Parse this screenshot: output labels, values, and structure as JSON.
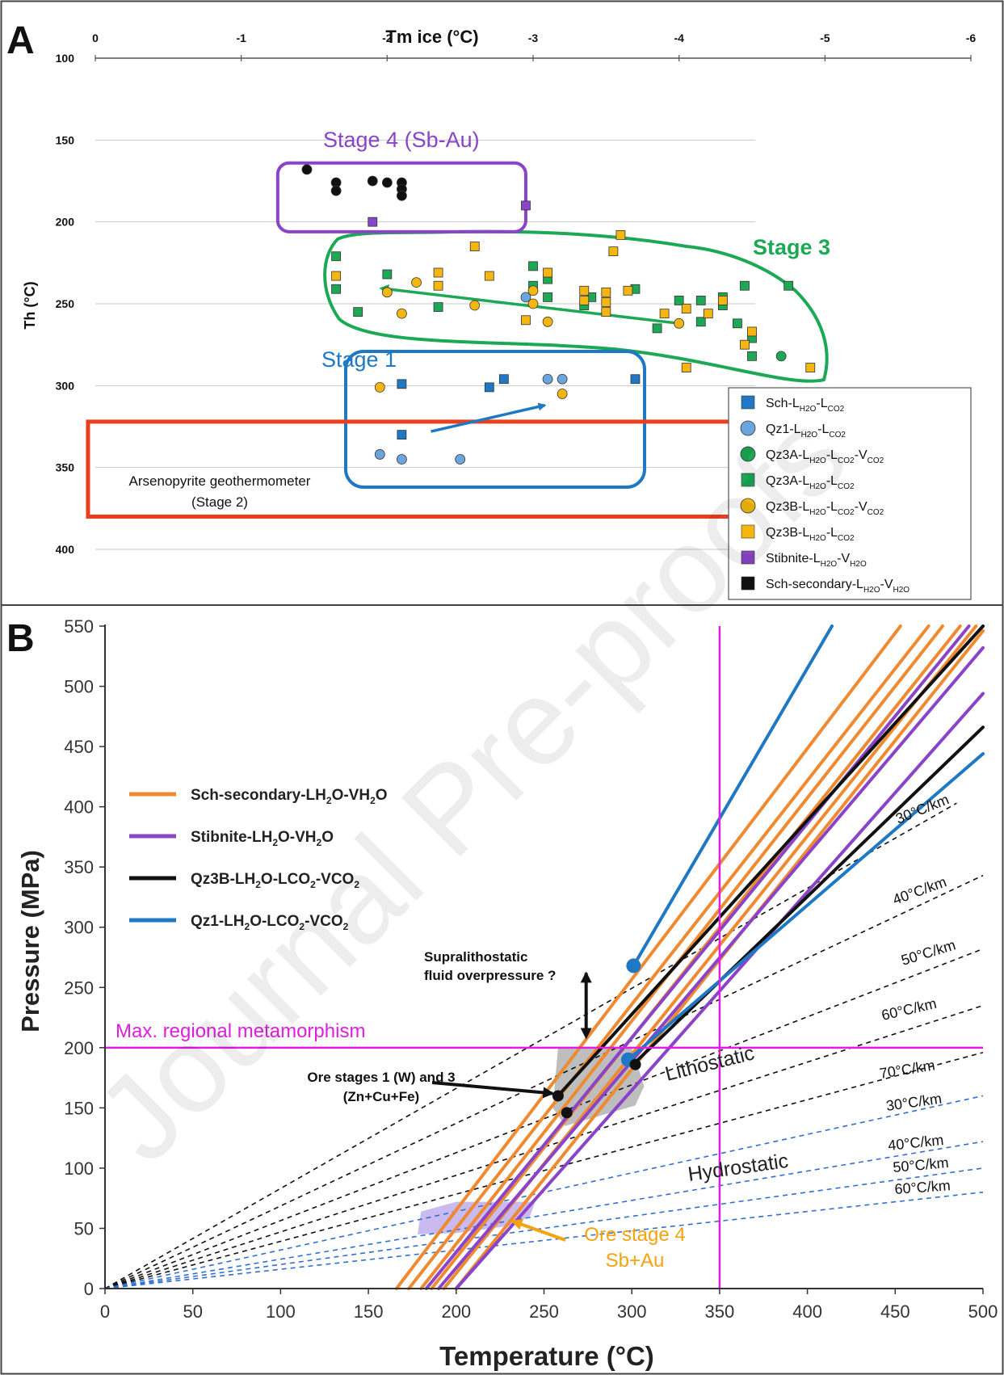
{
  "colors": {
    "orange": "#f08a30",
    "purple": "#8a44c8",
    "black": "#111111",
    "blue": "#1f78c4",
    "green": "#1da855",
    "red": "#e8401c",
    "magenta": "#e01de0",
    "yellow": "#f5b70f",
    "lightblue": "#6aa6dc",
    "dashblue": "#3070d0"
  },
  "watermark": "Journal Pre-proofs",
  "chart_data": [
    {
      "panel": "A",
      "type": "scatter",
      "x_axis_label": "Tm ice (°C)",
      "x_axis_position": "top",
      "x_ticks": [
        "0",
        "-1",
        "-2",
        "-3",
        "-4",
        "-5",
        "-6"
      ],
      "xlim": [
        0,
        -6
      ],
      "y_axis_label": "Th (°C)",
      "y_ticks": [
        "100",
        "150",
        "200",
        "250",
        "300",
        "350",
        "400"
      ],
      "ylim": [
        100,
        400
      ],
      "y_inverted": true,
      "grid": "horizontal",
      "annotations": {
        "stage4": "Stage 4 (Sb-Au)",
        "stage3": "Stage 3",
        "stage1": "Stage 1",
        "arseno_line1": "Arsenopyrite geothermometer",
        "arseno_line2": "(Stage 2)"
      },
      "boxes": {
        "stage4": {
          "x": [
            -1.25,
            -2.95
          ],
          "y": [
            164,
            206
          ]
        },
        "arsenopyrite": {
          "x": [
            0.05,
            -4.45
          ],
          "y": [
            322,
            380
          ]
        }
      },
      "arrows": [
        {
          "from": [
            -2.3,
            328
          ],
          "to": [
            -3.08,
            312
          ],
          "color": "blue"
        },
        {
          "from": [
            -4.0,
            262
          ],
          "to": [
            -2.0,
            241
          ],
          "color": "green"
        }
      ],
      "legend": [
        {
          "marker": "square",
          "color": "blue",
          "label": "Sch-L",
          "sub1": "H2O",
          "mid": "-L",
          "sub2": "CO2",
          "tail": "",
          "sub3": ""
        },
        {
          "marker": "circle",
          "color": "lightblue",
          "label": "Qz1-L",
          "sub1": "H2O",
          "mid": "-L",
          "sub2": "CO2",
          "tail": "",
          "sub3": ""
        },
        {
          "marker": "circle",
          "color": "green",
          "label": "Qz3A-L",
          "sub1": "H2O",
          "mid": "-L",
          "sub2": "CO2",
          "tail": "-V",
          "sub3": "CO2"
        },
        {
          "marker": "square",
          "color": "green",
          "label": "Qz3A-L",
          "sub1": "H2O",
          "mid": "-L",
          "sub2": "CO2",
          "tail": "",
          "sub3": ""
        },
        {
          "marker": "circle",
          "color": "yellow",
          "label": "Qz3B-L",
          "sub1": "H2O",
          "mid": "-L",
          "sub2": "CO2",
          "tail": "-V",
          "sub3": "CO2"
        },
        {
          "marker": "square",
          "color": "yellow",
          "label": "Qz3B-L",
          "sub1": "H2O",
          "mid": "-L",
          "sub2": "CO2",
          "tail": "",
          "sub3": ""
        },
        {
          "marker": "square",
          "color": "purple",
          "label": "Stibnite-L",
          "sub1": "H2O",
          "mid": "-V",
          "sub2": "H2O",
          "tail": "",
          "sub3": ""
        },
        {
          "marker": "square",
          "color": "black",
          "label": "Sch-secondary-L",
          "sub1": "H2O",
          "mid": "-V",
          "sub2": "H2O",
          "tail": "",
          "sub3": ""
        }
      ],
      "series": [
        {
          "name": "Sch-LH2O-LCO2",
          "marker": "square",
          "color": "blue",
          "points": [
            [
              -2.1,
              299
            ],
            [
              -2.1,
              330
            ],
            [
              -2.7,
              301
            ],
            [
              -2.8,
              296
            ],
            [
              -3.7,
              296
            ]
          ]
        },
        {
          "name": "Qz1-LH2O-LCO2",
          "marker": "circle",
          "color": "lightblue",
          "points": [
            [
              -1.95,
              342
            ],
            [
              -2.1,
              345
            ],
            [
              -2.5,
              345
            ],
            [
              -3.1,
              296
            ],
            [
              -3.2,
              296
            ],
            [
              -2.95,
              246
            ]
          ]
        },
        {
          "name": "Qz3A-LH2O-LCO2-VCO2",
          "marker": "circle",
          "color": "green",
          "points": [
            [
              -4.7,
              282
            ]
          ]
        },
        {
          "name": "Qz3A-LH2O-LCO2",
          "marker": "square",
          "color": "green",
          "points": [
            [
              -1.65,
              221
            ],
            [
              -1.65,
              241
            ],
            [
              -1.8,
              255
            ],
            [
              -2.0,
              232
            ],
            [
              -2.35,
              252
            ],
            [
              -3.0,
              227
            ],
            [
              -3.0,
              239
            ],
            [
              -3.1,
              235
            ],
            [
              -3.1,
              246
            ],
            [
              -3.35,
              251
            ],
            [
              -3.4,
              246
            ],
            [
              -3.7,
              241
            ],
            [
              -3.85,
              265
            ],
            [
              -4.0,
              248
            ],
            [
              -4.15,
              248
            ],
            [
              -4.15,
              261
            ],
            [
              -4.3,
              246
            ],
            [
              -4.3,
              251
            ],
            [
              -4.4,
              262
            ],
            [
              -4.45,
              239
            ],
            [
              -4.5,
              271
            ],
            [
              -4.5,
              282
            ],
            [
              -4.75,
              239
            ]
          ]
        },
        {
          "name": "Qz3B-LH2O-LCO2-VCO2",
          "marker": "circle",
          "color": "yellow",
          "points": [
            [
              -1.95,
              301
            ],
            [
              -3.2,
              305
            ],
            [
              -2.1,
              256
            ],
            [
              -2.2,
              237
            ],
            [
              -2.0,
              243
            ],
            [
              -2.6,
              251
            ],
            [
              -3.0,
              242
            ],
            [
              -3.1,
              261
            ],
            [
              -4.0,
              262
            ],
            [
              -3.0,
              250
            ]
          ]
        },
        {
          "name": "Qz3B-LH2O-LCO2",
          "marker": "square",
          "color": "yellow",
          "points": [
            [
              -1.65,
              233
            ],
            [
              -2.35,
              231
            ],
            [
              -2.35,
              239
            ],
            [
              -2.6,
              215
            ],
            [
              -2.7,
              233
            ],
            [
              -2.95,
              260
            ],
            [
              -3.1,
              231
            ],
            [
              -3.35,
              242
            ],
            [
              -3.35,
              248
            ],
            [
              -3.5,
              243
            ],
            [
              -3.5,
              249
            ],
            [
              -3.5,
              255
            ],
            [
              -3.6,
              208
            ],
            [
              -3.55,
              218
            ],
            [
              -3.65,
              242
            ],
            [
              -3.9,
              256
            ],
            [
              -4.05,
              253
            ],
            [
              -4.05,
              289
            ],
            [
              -4.2,
              256
            ],
            [
              -4.3,
              248
            ],
            [
              -4.45,
              275
            ],
            [
              -4.5,
              267
            ],
            [
              -4.9,
              289
            ]
          ]
        },
        {
          "name": "Stibnite-LH2O-VH2O",
          "marker": "square",
          "color": "purple",
          "points": [
            [
              -1.9,
              200
            ],
            [
              -2.95,
              190
            ]
          ]
        },
        {
          "name": "Sch-secondary-LH2O-VH2O",
          "marker": "circle",
          "color": "black",
          "points": [
            [
              -1.45,
              168
            ],
            [
              -1.65,
              176
            ],
            [
              -1.65,
              181
            ],
            [
              -1.9,
              175
            ],
            [
              -2.0,
              176
            ],
            [
              -2.1,
              176
            ],
            [
              -2.1,
              180
            ],
            [
              -2.1,
              184
            ]
          ]
        }
      ]
    },
    {
      "panel": "B",
      "type": "line",
      "x_axis_label": "Temperature (°C)",
      "x_ticks": [
        "0",
        "50",
        "100",
        "150",
        "200",
        "250",
        "300",
        "350",
        "400",
        "450",
        "500"
      ],
      "xlim": [
        0,
        500
      ],
      "y_axis_label": "Pressure (MPa)",
      "y_ticks": [
        "0",
        "50",
        "100",
        "150",
        "200",
        "250",
        "300",
        "350",
        "400",
        "450",
        "500",
        "550"
      ],
      "ylim": [
        0,
        550
      ],
      "annotations": {
        "max_meta": "Max. regional metamorphism",
        "supra1": "Supralithostatic",
        "supra2": "fluid overpressure ?",
        "ore13_1": "Ore stages 1 (W) and 3",
        "ore13_2": "(Zn+Cu+Fe)",
        "lithostatic": "Lithostatic",
        "hydrostatic": "Hydrostatic",
        "ore4_1": "Ore stage 4",
        "ore4_2": "Sb+Au"
      },
      "reference_lines": {
        "horizontal_pressure": 200,
        "vertical_temperature": 350
      },
      "legend": [
        {
          "color": "orange",
          "label": "Sch-secondary-LH",
          "sub1": "2",
          "mid": "O-VH",
          "sub2": "2",
          "tail": "O",
          "sub3": ""
        },
        {
          "color": "purple",
          "label": "Stibnite-LH",
          "sub1": "2",
          "mid": "O-VH",
          "sub2": "2",
          "tail": "O",
          "sub3": ""
        },
        {
          "color": "black",
          "label": "Qz3B-LH",
          "sub1": "2",
          "mid": "O-LCO",
          "sub2": "2",
          "tail": "-VCO",
          "sub3": "2"
        },
        {
          "color": "blue",
          "label": "Qz1-LH",
          "sub1": "2",
          "mid": "O-LCO",
          "sub2": "2",
          "tail": "-VCO",
          "sub3": "2"
        }
      ],
      "isochores": [
        {
          "group": "Sch-secondary-LH2O-VH2O",
          "color": "orange",
          "lines": [
            [
              [
                166,
                0
              ],
              [
                453,
                550
              ]
            ],
            [
              [
                173,
                0
              ],
              [
                469,
                550
              ]
            ],
            [
              [
                180,
                0
              ],
              [
                477,
                550
              ]
            ],
            [
              [
                186,
                0
              ],
              [
                487,
                550
              ]
            ],
            [
              [
                193,
                0
              ],
              [
                496,
                550
              ]
            ],
            [
              [
                200,
                0
              ],
              [
                500,
                546
              ]
            ]
          ]
        },
        {
          "group": "Stibnite-LH2O-VH2O",
          "color": "purple",
          "lines": [
            [
              [
                190,
                0
              ],
              [
                500,
                532
              ]
            ],
            [
              [
                200,
                0
              ],
              [
                500,
                494
              ]
            ],
            [
              [
                183,
                0
              ],
              [
                492,
                550
              ]
            ]
          ]
        },
        {
          "group": "Qz3B-LH2O-LCO2-VCO2",
          "color": "black",
          "lines": [
            [
              [
                258,
                160
              ],
              [
                500,
                550
              ]
            ],
            [
              [
                300,
                185
              ],
              [
                500,
                466
              ]
            ]
          ]
        },
        {
          "group": "Qz1-LH2O-LCO2-VCO2",
          "color": "blue",
          "lines": [
            [
              [
                301,
                268
              ],
              [
                414,
                550
              ]
            ],
            [
              [
                298,
                190
              ],
              [
                500,
                444
              ]
            ]
          ]
        }
      ],
      "gradients_lithostatic": [
        {
          "label": "30°C/km",
          "end": [
            485,
            403
          ]
        },
        {
          "label": "40°C/km",
          "end": [
            500,
            343
          ]
        },
        {
          "label": "50°C/km",
          "end": [
            500,
            282
          ]
        },
        {
          "label": "60°C/km",
          "end": [
            500,
            235
          ]
        },
        {
          "label": "70°C/km",
          "end": [
            500,
            196
          ]
        }
      ],
      "gradients_hydrostatic": [
        {
          "label": "30°C/km",
          "end": [
            500,
            160
          ]
        },
        {
          "label": "40°C/km",
          "end": [
            500,
            122
          ]
        },
        {
          "label": "50°C/km",
          "end": [
            500,
            100
          ]
        },
        {
          "label": "60°C/km",
          "end": [
            500,
            80
          ]
        }
      ],
      "fields": {
        "ore_stages_1_3": [
          [
            258,
            200
          ],
          [
            300,
            200
          ],
          [
            307,
            168
          ],
          [
            302,
            152
          ],
          [
            262,
            135
          ],
          [
            255,
            150
          ]
        ],
        "ore_stage_4": [
          [
            178,
            45
          ],
          [
            180,
            64
          ],
          [
            200,
            72
          ],
          [
            245,
            72
          ],
          [
            242,
            60
          ],
          [
            230,
            52
          ],
          [
            200,
            46
          ]
        ]
      },
      "endpoint_markers": [
        {
          "series": "Qz1",
          "x": 301,
          "y": 268,
          "color": "blue"
        },
        {
          "series": "Qz1",
          "x": 298,
          "y": 190,
          "color": "blue"
        },
        {
          "series": "Qz3B",
          "x": 258,
          "y": 160,
          "color": "black"
        },
        {
          "series": "Qz3B",
          "x": 263,
          "y": 146,
          "color": "black"
        },
        {
          "series": "Qz3B",
          "x": 302,
          "y": 186,
          "color": "black"
        }
      ]
    }
  ]
}
